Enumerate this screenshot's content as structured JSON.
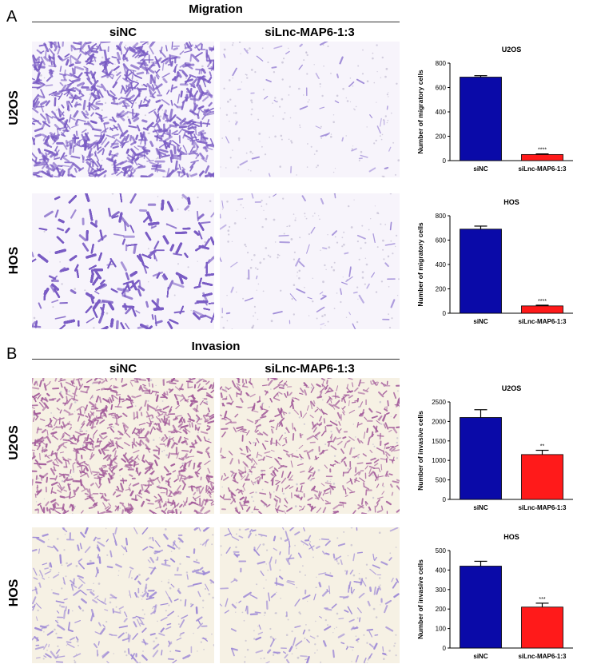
{
  "panels": {
    "A": {
      "letter": "A",
      "title": "Migration",
      "columns": [
        "siNC",
        "siLnc-MAP6-1:3"
      ],
      "rows": [
        "U2OS",
        "HOS"
      ]
    },
    "B": {
      "letter": "B",
      "title": "Invasion",
      "columns": [
        "siNC",
        "siLnc-MAP6-1:3"
      ],
      "rows": [
        "U2OS",
        "HOS"
      ]
    }
  },
  "colors": {
    "siNC": "#0a0aa8",
    "siLnc": "#ff1a1a",
    "stain_dense": "#7a5cc4",
    "stain_light": "#9b86d6",
    "stain_invasion": "#a25a9a",
    "bg_migration": "#f7f4fb",
    "bg_invasion": "#f6f1e4"
  },
  "chart_data": [
    {
      "type": "bar",
      "title": "U2OS",
      "categories": [
        "siNC",
        "siLnc-MAP6-1:3"
      ],
      "values": [
        685,
        50
      ],
      "errors": [
        12,
        5
      ],
      "significance": [
        "",
        "****"
      ],
      "ylabel": "Number of migratory cells",
      "xlabel": "",
      "ylim": [
        0,
        800
      ],
      "yticks": [
        0,
        200,
        400,
        600,
        800
      ]
    },
    {
      "type": "bar",
      "title": "HOS",
      "categories": [
        "siNC",
        "siLnc-MAP6-1:3"
      ],
      "values": [
        690,
        60
      ],
      "errors": [
        25,
        6
      ],
      "significance": [
        "",
        "****"
      ],
      "ylabel": "Number of migratory cells",
      "xlabel": "",
      "ylim": [
        0,
        800
      ],
      "yticks": [
        0,
        200,
        400,
        600,
        800
      ]
    },
    {
      "type": "bar",
      "title": "U2OS",
      "categories": [
        "siNC",
        "siLnc-MAP6-1:3"
      ],
      "values": [
        2100,
        1150
      ],
      "errors": [
        200,
        110
      ],
      "significance": [
        "",
        "**"
      ],
      "ylabel": "Number of invasive cells",
      "xlabel": "",
      "ylim": [
        0,
        2500
      ],
      "yticks": [
        0,
        500,
        1000,
        1500,
        2000,
        2500
      ]
    },
    {
      "type": "bar",
      "title": "HOS",
      "categories": [
        "siNC",
        "siLnc-MAP6-1:3"
      ],
      "values": [
        420,
        210
      ],
      "errors": [
        25,
        20
      ],
      "significance": [
        "",
        "***"
      ],
      "ylabel": "Number of invasive cells",
      "xlabel": "",
      "ylim": [
        0,
        500
      ],
      "yticks": [
        0,
        100,
        200,
        300,
        400,
        500
      ]
    }
  ]
}
